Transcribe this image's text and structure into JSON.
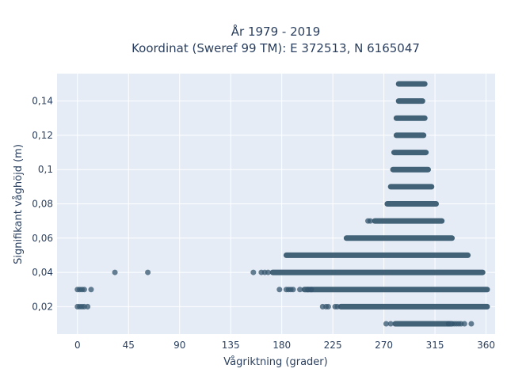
{
  "chart_data": {
    "type": "scatter",
    "title_line1": "År 1979 - 2019",
    "title_line2": "Koordinat (Sweref 99 TM): E 372513, N 6165047",
    "xlabel": "Vågriktning (grader)",
    "ylabel": "Signifikant våghöjd (m)",
    "xlim": [
      -18,
      368
    ],
    "ylim": [
      0.004,
      0.156
    ],
    "x_ticks": [
      0,
      45,
      90,
      135,
      180,
      225,
      270,
      315,
      360
    ],
    "x_tick_labels": [
      "0",
      "45",
      "90",
      "135",
      "180",
      "225",
      "270",
      "315",
      "360"
    ],
    "y_ticks": [
      0.02,
      0.04,
      0.06,
      0.08,
      0.1,
      0.12,
      0.14
    ],
    "y_tick_labels": [
      "0,02",
      "0,04",
      "0,06",
      "0,08",
      "0,1",
      "0,12",
      "0,14"
    ],
    "grid": true,
    "marker_color": "#34566d",
    "plot_background": "#e5ecf6",
    "grid_color": "#ffffff",
    "bands": [
      {
        "y": 0.15,
        "x_start": 283,
        "x_end": 306
      },
      {
        "y": 0.14,
        "x_start": 283,
        "x_end": 304
      },
      {
        "y": 0.13,
        "x_start": 281,
        "x_end": 306
      },
      {
        "y": 0.12,
        "x_start": 281,
        "x_end": 305
      },
      {
        "y": 0.11,
        "x_start": 279,
        "x_end": 307
      },
      {
        "y": 0.1,
        "x_start": 278,
        "x_end": 309
      },
      {
        "y": 0.09,
        "x_start": 276,
        "x_end": 312
      },
      {
        "y": 0.08,
        "x_start": 273,
        "x_end": 316
      },
      {
        "y": 0.07,
        "x_start": 262,
        "x_end": 321
      },
      {
        "y": 0.06,
        "x_start": 237,
        "x_end": 330
      },
      {
        "y": 0.05,
        "x_start": 184,
        "x_end": 344
      },
      {
        "y": 0.04,
        "x_start": 172,
        "x_end": 357
      },
      {
        "y": 0.03,
        "x_start": 200,
        "x_end": 361
      },
      {
        "y": 0.02,
        "x_start": 232,
        "x_end": 361
      },
      {
        "y": 0.01,
        "x_start": 280,
        "x_end": 330
      }
    ],
    "points": [
      {
        "x": 0,
        "y": 0.03
      },
      {
        "x": 2,
        "y": 0.03
      },
      {
        "x": 4,
        "y": 0.03
      },
      {
        "x": 6,
        "y": 0.03
      },
      {
        "x": 12,
        "y": 0.03
      },
      {
        "x": 0,
        "y": 0.02
      },
      {
        "x": 2,
        "y": 0.02
      },
      {
        "x": 4,
        "y": 0.02
      },
      {
        "x": 6,
        "y": 0.02
      },
      {
        "x": 9,
        "y": 0.02
      },
      {
        "x": 33,
        "y": 0.04
      },
      {
        "x": 62,
        "y": 0.04
      },
      {
        "x": 155,
        "y": 0.04
      },
      {
        "x": 162,
        "y": 0.04
      },
      {
        "x": 165,
        "y": 0.04
      },
      {
        "x": 168,
        "y": 0.04
      },
      {
        "x": 178,
        "y": 0.03
      },
      {
        "x": 184,
        "y": 0.03
      },
      {
        "x": 186,
        "y": 0.03
      },
      {
        "x": 188,
        "y": 0.03
      },
      {
        "x": 190,
        "y": 0.03
      },
      {
        "x": 196,
        "y": 0.03
      },
      {
        "x": 203,
        "y": 0.03
      },
      {
        "x": 206,
        "y": 0.03
      },
      {
        "x": 216,
        "y": 0.02
      },
      {
        "x": 219,
        "y": 0.02
      },
      {
        "x": 221,
        "y": 0.02
      },
      {
        "x": 227,
        "y": 0.02
      },
      {
        "x": 229,
        "y": 0.02
      },
      {
        "x": 256,
        "y": 0.07
      },
      {
        "x": 258,
        "y": 0.07
      },
      {
        "x": 272,
        "y": 0.01
      },
      {
        "x": 276,
        "y": 0.01
      },
      {
        "x": 327,
        "y": 0.01
      },
      {
        "x": 332,
        "y": 0.01
      },
      {
        "x": 334,
        "y": 0.01
      },
      {
        "x": 336,
        "y": 0.01
      },
      {
        "x": 338,
        "y": 0.01
      },
      {
        "x": 341,
        "y": 0.01
      },
      {
        "x": 347,
        "y": 0.01
      }
    ]
  }
}
